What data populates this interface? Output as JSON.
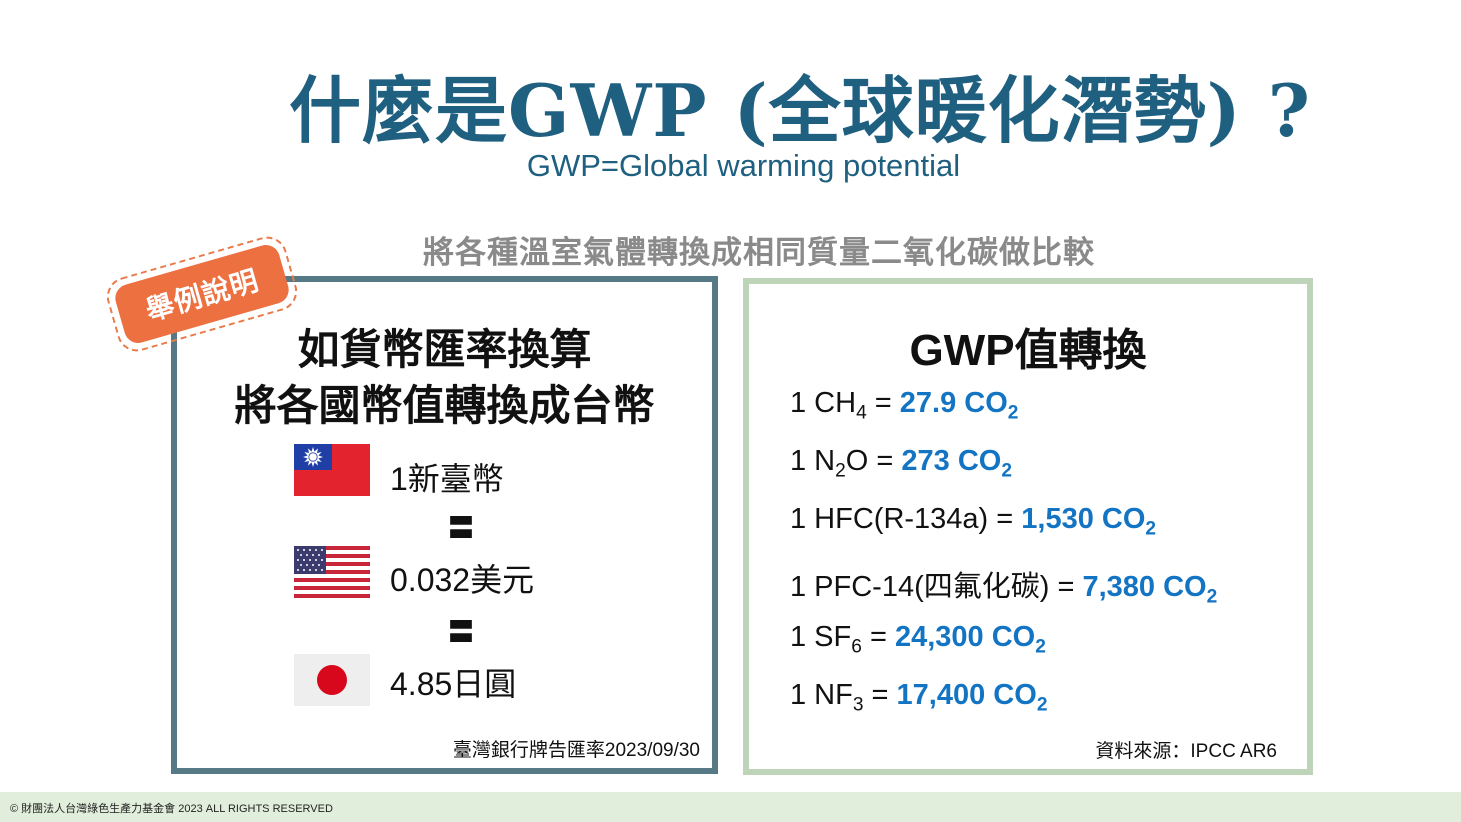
{
  "header": {
    "title": "什麼是GWP (全球暖化潛勢) ?",
    "subtitle": "GWP=Global warming potential",
    "intro": "將各種溫室氣體轉換成相同質量二氧化碳做比較"
  },
  "left_panel": {
    "badge": "舉例說明",
    "heading_line1": "如貨幣匯率換算",
    "heading_line2": "將各國幣值轉換成台幣",
    "rows": [
      {
        "flag": "taiwan-flag-icon",
        "text": "1新臺幣"
      },
      {
        "flag": "usa-flag-icon",
        "text": "0.032美元"
      },
      {
        "flag": "japan-flag-icon",
        "text": "4.85日圓"
      }
    ],
    "equiv_symbol": "〓",
    "note": "臺灣銀行牌告匯率2023/09/30"
  },
  "right_panel": {
    "heading": "GWP值轉換",
    "rows": [
      {
        "lhs": "1 CH",
        "lhs_sub": "4",
        "lhs_tail": "",
        "eq": " = ",
        "value": "27.9 CO",
        "value_sub": "2"
      },
      {
        "lhs": "1 N",
        "lhs_sub": "2",
        "lhs_tail": "O",
        "eq": " = ",
        "value": "273 CO",
        "value_sub": "2"
      },
      {
        "lhs": "1 HFC(R-134a)",
        "lhs_sub": "",
        "lhs_tail": "",
        "eq": " = ",
        "value": "1,530 CO",
        "value_sub": "2"
      },
      {
        "lhs": "1 PFC-14(四氟化碳)",
        "lhs_sub": "",
        "lhs_tail": "",
        "eq": " = ",
        "value": "7,380 CO",
        "value_sub": "2"
      },
      {
        "lhs": "1 SF",
        "lhs_sub": "6",
        "lhs_tail": "",
        "eq": " = ",
        "value": "24,300 CO",
        "value_sub": "2"
      },
      {
        "lhs": "1 NF",
        "lhs_sub": "3",
        "lhs_tail": "",
        "eq": " = ",
        "value": "17,400 CO",
        "value_sub": "2"
      }
    ],
    "note": "資料來源：IPCC AR6"
  },
  "footer": {
    "copyright": "© 財團法人台灣綠色生產力基金會 2023 ALL RIGHTS RESERVED"
  },
  "colors": {
    "title": "#1f5f80",
    "value": "#1274c3",
    "badge": "#ec7040",
    "left_border": "#557a86",
    "right_border": "#bed4b8",
    "footer_bg": "#e2eedc",
    "taiwan_red": "#e3232e",
    "taiwan_blue": "#1f3fa6",
    "japan_red": "#d7081b"
  }
}
